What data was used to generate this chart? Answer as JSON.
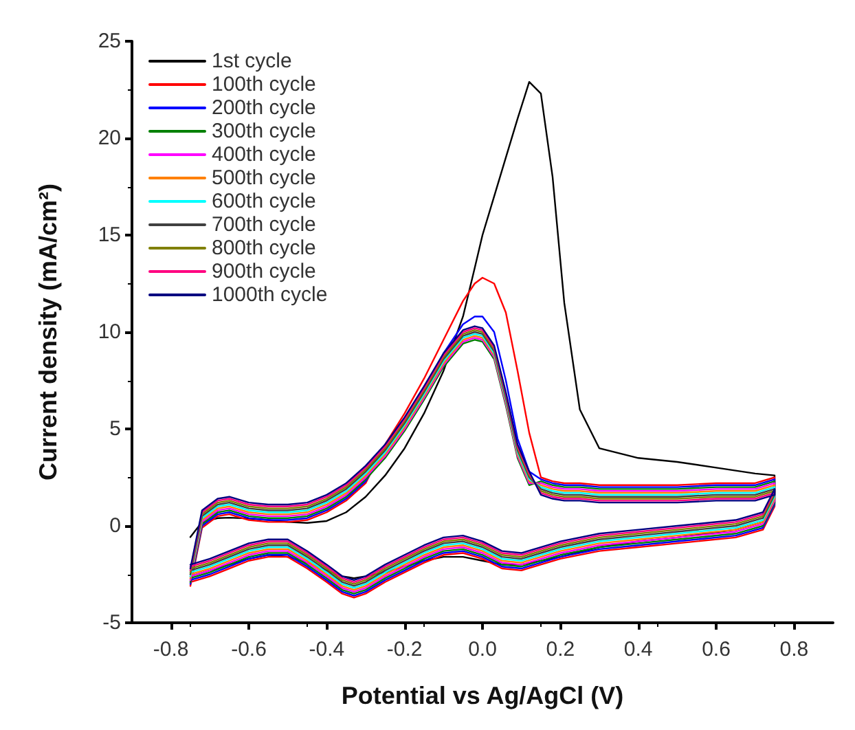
{
  "chart_data": {
    "type": "line",
    "xlabel": "Potential vs Ag/AgCl (V)",
    "ylabel": "Current density (mA/cm²)",
    "xlim": [
      -0.9,
      0.9
    ],
    "xticks": [
      -0.8,
      -0.6,
      -0.4,
      -0.2,
      {
        "value": 0,
        "label": "0.0"
      },
      0.2,
      0.4,
      0.6,
      0.8
    ],
    "ylim": [
      -5,
      25
    ],
    "yticks": [
      -5,
      0,
      5,
      10,
      15,
      20,
      25
    ],
    "grid": false,
    "legend": "top left",
    "marker": "none",
    "line_style": "solid",
    "x": [
      -0.75,
      -0.72,
      -0.68,
      -0.65,
      -0.6,
      -0.55,
      -0.5,
      -0.45,
      -0.4,
      -0.35,
      -0.3,
      -0.25,
      -0.2,
      -0.15,
      -0.1,
      -0.05,
      -0.02,
      0,
      0.03,
      0.06,
      0.09,
      0.12,
      0.15,
      0.18,
      0.21,
      0.25,
      0.3,
      0.4,
      0.5,
      0.6,
      0.7,
      0.75,
      0.75,
      0.72,
      0.65,
      0.5,
      0.4,
      0.3,
      0.2,
      0.1,
      0.05,
      0,
      -0.05,
      -0.1,
      -0.15,
      -0.2,
      -0.25,
      -0.3,
      -0.33,
      -0.36,
      -0.4,
      -0.45,
      -0.5,
      -0.55,
      -0.6,
      -0.65,
      -0.7,
      -0.75
    ],
    "series": [
      {
        "name": "1st cycle",
        "color": "#000000",
        "values": [
          -0.58,
          0.2,
          0.4,
          0.42,
          0.38,
          0.3,
          0.2,
          0.15,
          0.25,
          0.7,
          1.5,
          2.6,
          4.0,
          5.8,
          8.0,
          10.8,
          13.3,
          15.0,
          17.0,
          19.0,
          21.0,
          22.9,
          22.3,
          18.0,
          11.5,
          6.0,
          4.0,
          3.5,
          3.3,
          3.0,
          2.7,
          2.6,
          1.8,
          0.2,
          -0.2,
          -0.6,
          -0.8,
          -1.1,
          -1.6,
          -2.0,
          -2.0,
          -1.8,
          -1.6,
          -1.6,
          -1.8,
          -2.1,
          -2.4,
          -2.6,
          -2.7,
          -2.6,
          -2.3,
          -1.9,
          -1.6,
          -1.5,
          -1.7,
          -2.0,
          -2.3,
          -2.6
        ]
      },
      {
        "name": "100th cycle",
        "color": "#ff0000",
        "values": [
          -3.1,
          -0.1,
          0.5,
          0.6,
          0.3,
          0.2,
          0.2,
          0.3,
          0.7,
          1.3,
          2.2,
          4.2,
          5.8,
          7.6,
          9.6,
          11.6,
          12.5,
          12.8,
          12.5,
          11.0,
          8.0,
          4.8,
          2.5,
          2.3,
          2.2,
          2.2,
          2.1,
          2.1,
          2.1,
          2.2,
          2.2,
          2.5,
          1.0,
          -0.2,
          -0.6,
          -0.9,
          -1.1,
          -1.3,
          -1.7,
          -2.3,
          -2.2,
          -1.7,
          -1.4,
          -1.5,
          -1.9,
          -2.4,
          -2.9,
          -3.5,
          -3.7,
          -3.5,
          -2.9,
          -2.2,
          -1.6,
          -1.6,
          -1.8,
          -2.2,
          -2.6,
          -2.9
        ]
      },
      {
        "name": "200th cycle",
        "color": "#0000ff",
        "values": [
          -3.0,
          0.0,
          0.6,
          0.7,
          0.4,
          0.3,
          0.3,
          0.4,
          0.8,
          1.4,
          2.3,
          3.9,
          5.4,
          7.1,
          8.9,
          10.4,
          10.8,
          10.8,
          10.0,
          7.5,
          4.5,
          2.8,
          2.4,
          2.2,
          2.1,
          2.1,
          2.0,
          2.0,
          2.0,
          2.1,
          2.1,
          2.4,
          1.1,
          -0.1,
          -0.5,
          -0.8,
          -1.0,
          -1.2,
          -1.6,
          -2.2,
          -2.1,
          -1.6,
          -1.3,
          -1.4,
          -1.8,
          -2.3,
          -2.8,
          -3.4,
          -3.6,
          -3.4,
          -2.8,
          -2.1,
          -1.5,
          -1.5,
          -1.7,
          -2.1,
          -2.5,
          -2.8
        ]
      },
      {
        "name": "300th cycle",
        "color": "#008000",
        "values": [
          -2.9,
          0.1,
          0.7,
          0.8,
          0.5,
          0.4,
          0.4,
          0.5,
          0.9,
          1.5,
          2.4,
          3.5,
          4.9,
          6.5,
          8.2,
          9.4,
          9.6,
          9.5,
          8.6,
          6.2,
          3.5,
          2.1,
          2.3,
          2.1,
          2.0,
          2.0,
          1.9,
          1.9,
          1.9,
          2.0,
          2.0,
          2.3,
          1.2,
          0.0,
          -0.4,
          -0.7,
          -0.9,
          -1.1,
          -1.5,
          -2.1,
          -2.0,
          -1.5,
          -1.2,
          -1.3,
          -1.7,
          -2.2,
          -2.7,
          -3.3,
          -3.5,
          -3.3,
          -2.7,
          -2.0,
          -1.4,
          -1.4,
          -1.6,
          -2.0,
          -2.4,
          -2.7
        ]
      },
      {
        "name": "400th cycle",
        "color": "#ff00ff",
        "values": [
          -2.8,
          0.2,
          0.8,
          0.9,
          0.6,
          0.5,
          0.5,
          0.6,
          1.0,
          1.6,
          2.5,
          3.6,
          5.0,
          6.6,
          8.3,
          9.5,
          9.7,
          9.6,
          8.7,
          6.3,
          3.6,
          2.2,
          2.2,
          2.0,
          1.9,
          1.9,
          1.8,
          1.8,
          1.8,
          1.9,
          1.9,
          2.2,
          1.3,
          0.1,
          -0.3,
          -0.6,
          -0.8,
          -1.0,
          -1.4,
          -2.0,
          -1.9,
          -1.4,
          -1.1,
          -1.2,
          -1.6,
          -2.1,
          -2.6,
          -3.2,
          -3.4,
          -3.2,
          -2.6,
          -1.9,
          -1.3,
          -1.3,
          -1.5,
          -1.9,
          -2.3,
          -2.6
        ]
      },
      {
        "name": "500th cycle",
        "color": "#ff8000",
        "values": [
          -2.7,
          0.3,
          0.9,
          1.0,
          0.7,
          0.6,
          0.6,
          0.7,
          1.1,
          1.7,
          2.6,
          3.7,
          5.1,
          6.7,
          8.4,
          9.6,
          9.8,
          9.7,
          8.8,
          6.4,
          3.7,
          2.3,
          2.1,
          1.9,
          1.8,
          1.8,
          1.7,
          1.7,
          1.7,
          1.8,
          1.8,
          2.1,
          1.4,
          0.2,
          -0.2,
          -0.5,
          -0.7,
          -0.9,
          -1.3,
          -1.9,
          -1.8,
          -1.3,
          -1.0,
          -1.1,
          -1.5,
          -2.0,
          -2.5,
          -3.1,
          -3.3,
          -3.1,
          -2.5,
          -1.8,
          -1.2,
          -1.2,
          -1.4,
          -1.8,
          -2.2,
          -2.5
        ]
      },
      {
        "name": "600th cycle",
        "color": "#00ffff",
        "values": [
          -2.6,
          0.4,
          1.0,
          1.1,
          0.8,
          0.7,
          0.7,
          0.8,
          1.2,
          1.8,
          2.7,
          3.8,
          5.2,
          6.8,
          8.5,
          9.7,
          9.9,
          9.8,
          8.9,
          6.5,
          3.8,
          2.4,
          2.0,
          1.8,
          1.7,
          1.7,
          1.6,
          1.6,
          1.6,
          1.7,
          1.7,
          2.0,
          1.5,
          0.3,
          -0.1,
          -0.4,
          -0.6,
          -0.8,
          -1.2,
          -1.8,
          -1.7,
          -1.2,
          -0.9,
          -1.0,
          -1.4,
          -1.9,
          -2.4,
          -3.0,
          -3.2,
          -3.0,
          -2.4,
          -1.7,
          -1.1,
          -1.1,
          -1.3,
          -1.7,
          -2.1,
          -2.4
        ]
      },
      {
        "name": "700th cycle",
        "color": "#404040",
        "values": [
          -2.5,
          0.5,
          1.1,
          1.2,
          0.9,
          0.8,
          0.8,
          0.9,
          1.3,
          1.9,
          2.8,
          3.9,
          5.3,
          6.9,
          8.6,
          9.8,
          10.0,
          9.9,
          9.0,
          6.6,
          3.9,
          2.5,
          1.9,
          1.7,
          1.6,
          1.6,
          1.5,
          1.5,
          1.5,
          1.6,
          1.6,
          1.9,
          1.6,
          0.4,
          0.0,
          -0.3,
          -0.5,
          -0.7,
          -1.1,
          -1.7,
          -1.6,
          -1.1,
          -0.8,
          -0.9,
          -1.3,
          -1.8,
          -2.3,
          -2.9,
          -3.1,
          -2.9,
          -2.3,
          -1.6,
          -1.0,
          -1.0,
          -1.2,
          -1.6,
          -2.0,
          -2.3
        ]
      },
      {
        "name": "800th cycle",
        "color": "#808000",
        "values": [
          -2.4,
          0.6,
          1.2,
          1.3,
          1.0,
          0.9,
          0.9,
          1.0,
          1.4,
          2.0,
          2.9,
          4.0,
          5.4,
          7.0,
          8.7,
          9.9,
          10.1,
          10.0,
          9.1,
          6.7,
          4.0,
          2.6,
          1.8,
          1.6,
          1.5,
          1.5,
          1.4,
          1.4,
          1.4,
          1.5,
          1.5,
          1.8,
          1.7,
          0.5,
          0.1,
          -0.2,
          -0.4,
          -0.6,
          -1.0,
          -1.6,
          -1.5,
          -1.0,
          -0.7,
          -0.8,
          -1.2,
          -1.7,
          -2.2,
          -2.8,
          -3.0,
          -2.8,
          -2.2,
          -1.5,
          -0.9,
          -0.9,
          -1.1,
          -1.5,
          -1.9,
          -2.2
        ]
      },
      {
        "name": "900th cycle",
        "color": "#ff0080",
        "values": [
          -2.3,
          0.7,
          1.3,
          1.4,
          1.1,
          1.0,
          1.0,
          1.1,
          1.5,
          2.1,
          3.0,
          4.1,
          5.5,
          7.1,
          8.8,
          10.0,
          10.2,
          10.1,
          9.2,
          6.8,
          4.1,
          2.7,
          1.7,
          1.5,
          1.4,
          1.4,
          1.3,
          1.3,
          1.3,
          1.4,
          1.4,
          1.7,
          1.8,
          0.6,
          0.2,
          -0.1,
          -0.3,
          -0.5,
          -0.9,
          -1.5,
          -1.4,
          -0.9,
          -0.6,
          -0.7,
          -1.1,
          -1.6,
          -2.1,
          -2.7,
          -2.9,
          -2.7,
          -2.1,
          -1.4,
          -0.8,
          -0.8,
          -1.0,
          -1.4,
          -1.8,
          -2.1
        ]
      },
      {
        "name": "1000th cycle",
        "color": "#000080",
        "values": [
          -2.2,
          0.8,
          1.4,
          1.5,
          1.2,
          1.1,
          1.1,
          1.2,
          1.6,
          2.2,
          3.1,
          4.2,
          5.6,
          7.2,
          8.9,
          10.1,
          10.3,
          10.2,
          9.3,
          6.9,
          4.2,
          2.8,
          1.6,
          1.4,
          1.3,
          1.3,
          1.2,
          1.2,
          1.2,
          1.3,
          1.3,
          1.6,
          1.9,
          0.7,
          0.3,
          0.0,
          -0.2,
          -0.4,
          -0.8,
          -1.4,
          -1.3,
          -0.8,
          -0.5,
          -0.6,
          -1.0,
          -1.5,
          -2.0,
          -2.6,
          -2.8,
          -2.6,
          -2.0,
          -1.3,
          -0.7,
          -0.7,
          -0.9,
          -1.3,
          -1.7,
          -2.0
        ]
      }
    ]
  }
}
